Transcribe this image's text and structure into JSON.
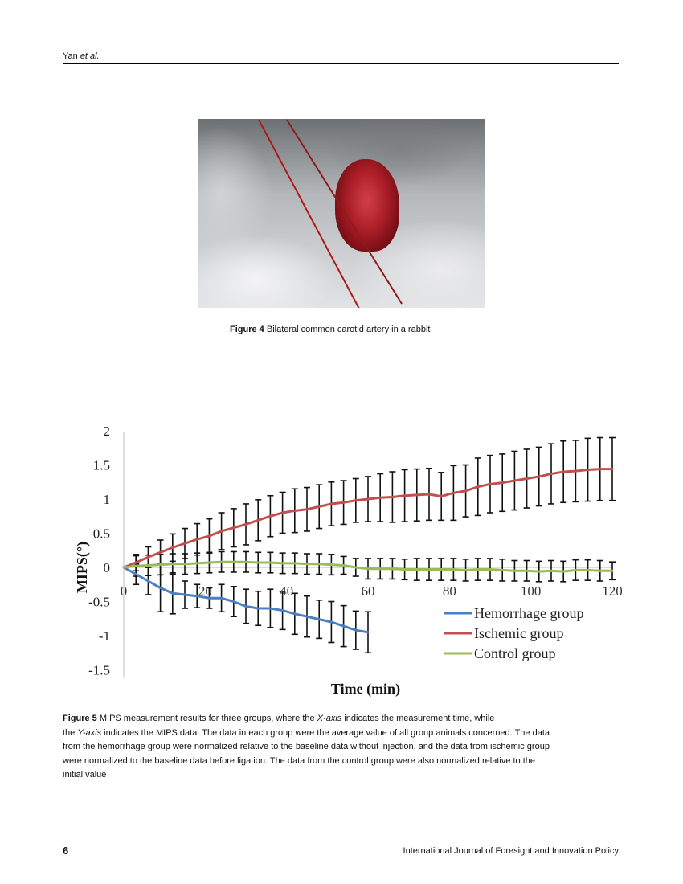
{
  "header": {
    "author": "Yan ",
    "etal": "et al."
  },
  "figure4": {
    "label": "Figure 4",
    "caption": " Bilateral common carotid artery in a rabbit"
  },
  "figure5": {
    "label": "Figure 5",
    "caption_lines": [
      [
        {
          "t": " MIPS measurement results for three groups, where the ",
          "i": false
        },
        {
          "t": "X-axis",
          "i": true
        },
        {
          "t": " indicates the measurement time, while",
          "i": false
        }
      ],
      [
        {
          "t": "the ",
          "i": false
        },
        {
          "t": "Y-axis",
          "i": true
        },
        {
          "t": " indicates the MIPS data. The data in each group were the average value of all group animals concerned. The data",
          "i": false
        }
      ],
      [
        {
          "t": "from the hemorrhage group were normalized relative to the baseline data without injection, and the data from ischemic group",
          "i": false
        }
      ],
      [
        {
          "t": "were normalized to the baseline data before ligation. The data from the control group were also normalized relative to the",
          "i": false
        }
      ],
      [
        {
          "t": "initial value",
          "i": false
        }
      ]
    ]
  },
  "chart_data": {
    "type": "line",
    "xlabel": "Time (min)",
    "ylabel": "MIPS(°)",
    "xlim": [
      0,
      120
    ],
    "ylim": [
      -1.5,
      2
    ],
    "xticks": [
      "0",
      "20",
      "40",
      "60",
      "80",
      "100",
      "120"
    ],
    "yticks": [
      "2",
      "1.5",
      "1",
      "0.5",
      "0",
      "-0.5",
      "-1",
      "-1.5"
    ],
    "legend_position": "bottom-right",
    "grid": false,
    "series": [
      {
        "name": "Hemorrhage group",
        "color": "#4a7fc1",
        "x": [
          0,
          3,
          6,
          9,
          12,
          15,
          18,
          21,
          24,
          27,
          30,
          33,
          36,
          39,
          42,
          45,
          48,
          51,
          54,
          57,
          60
        ],
        "y": [
          0,
          -0.1,
          -0.2,
          -0.3,
          -0.38,
          -0.4,
          -0.42,
          -0.45,
          -0.45,
          -0.5,
          -0.57,
          -0.6,
          -0.6,
          -0.63,
          -0.68,
          -0.72,
          -0.76,
          -0.8,
          -0.86,
          -0.92,
          -0.95
        ],
        "err": [
          0,
          0.15,
          0.2,
          0.35,
          0.3,
          0.2,
          0.17,
          0.15,
          0.2,
          0.22,
          0.25,
          0.25,
          0.28,
          0.28,
          0.3,
          0.3,
          0.28,
          0.3,
          0.3,
          0.28,
          0.3
        ]
      },
      {
        "name": "Ischemic group",
        "color": "#c0504d",
        "x": [
          0,
          3,
          6,
          9,
          12,
          15,
          18,
          21,
          24,
          27,
          30,
          33,
          36,
          39,
          42,
          45,
          48,
          51,
          54,
          57,
          60,
          63,
          66,
          69,
          72,
          75,
          78,
          81,
          84,
          87,
          90,
          93,
          96,
          99,
          102,
          105,
          108,
          111,
          114,
          117,
          120
        ],
        "y": [
          0,
          0.07,
          0.15,
          0.22,
          0.29,
          0.35,
          0.41,
          0.46,
          0.53,
          0.58,
          0.63,
          0.69,
          0.75,
          0.8,
          0.83,
          0.85,
          0.89,
          0.93,
          0.95,
          0.98,
          1.0,
          1.02,
          1.03,
          1.05,
          1.06,
          1.07,
          1.04,
          1.09,
          1.12,
          1.18,
          1.22,
          1.24,
          1.27,
          1.3,
          1.33,
          1.37,
          1.4,
          1.41,
          1.43,
          1.44,
          1.44
        ],
        "err": [
          0,
          0.12,
          0.15,
          0.18,
          0.2,
          0.22,
          0.23,
          0.25,
          0.27,
          0.28,
          0.3,
          0.3,
          0.3,
          0.3,
          0.32,
          0.32,
          0.32,
          0.32,
          0.32,
          0.32,
          0.33,
          0.35,
          0.37,
          0.38,
          0.38,
          0.38,
          0.35,
          0.4,
          0.38,
          0.42,
          0.42,
          0.42,
          0.43,
          0.43,
          0.43,
          0.44,
          0.45,
          0.45,
          0.46,
          0.46,
          0.46
        ]
      },
      {
        "name": "Control group",
        "color": "#9bbb59",
        "x": [
          0,
          3,
          6,
          9,
          12,
          15,
          18,
          21,
          24,
          27,
          30,
          33,
          36,
          39,
          42,
          45,
          48,
          51,
          54,
          57,
          60,
          63,
          66,
          69,
          72,
          75,
          78,
          81,
          84,
          87,
          90,
          93,
          96,
          99,
          102,
          105,
          108,
          111,
          114,
          117,
          120
        ],
        "y": [
          0,
          0.02,
          0.03,
          0.04,
          0.05,
          0.05,
          0.06,
          0.07,
          0.08,
          0.08,
          0.08,
          0.07,
          0.07,
          0.06,
          0.06,
          0.05,
          0.05,
          0.04,
          0.03,
          0.0,
          -0.02,
          -0.02,
          -0.02,
          -0.03,
          -0.03,
          -0.03,
          -0.03,
          -0.03,
          -0.04,
          -0.03,
          -0.03,
          -0.04,
          -0.05,
          -0.05,
          -0.06,
          -0.05,
          -0.06,
          -0.04,
          -0.04,
          -0.05,
          -0.05
        ],
        "err": [
          0,
          0.15,
          0.15,
          0.15,
          0.15,
          0.15,
          0.15,
          0.15,
          0.15,
          0.15,
          0.15,
          0.15,
          0.15,
          0.15,
          0.15,
          0.15,
          0.15,
          0.15,
          0.13,
          0.13,
          0.15,
          0.15,
          0.15,
          0.15,
          0.16,
          0.16,
          0.16,
          0.16,
          0.16,
          0.16,
          0.16,
          0.16,
          0.15,
          0.15,
          0.15,
          0.15,
          0.15,
          0.15,
          0.15,
          0.15,
          0.13
        ]
      }
    ]
  },
  "footer": {
    "page": "6",
    "journal": "International Journal of Foresight and Innovation Policy"
  }
}
